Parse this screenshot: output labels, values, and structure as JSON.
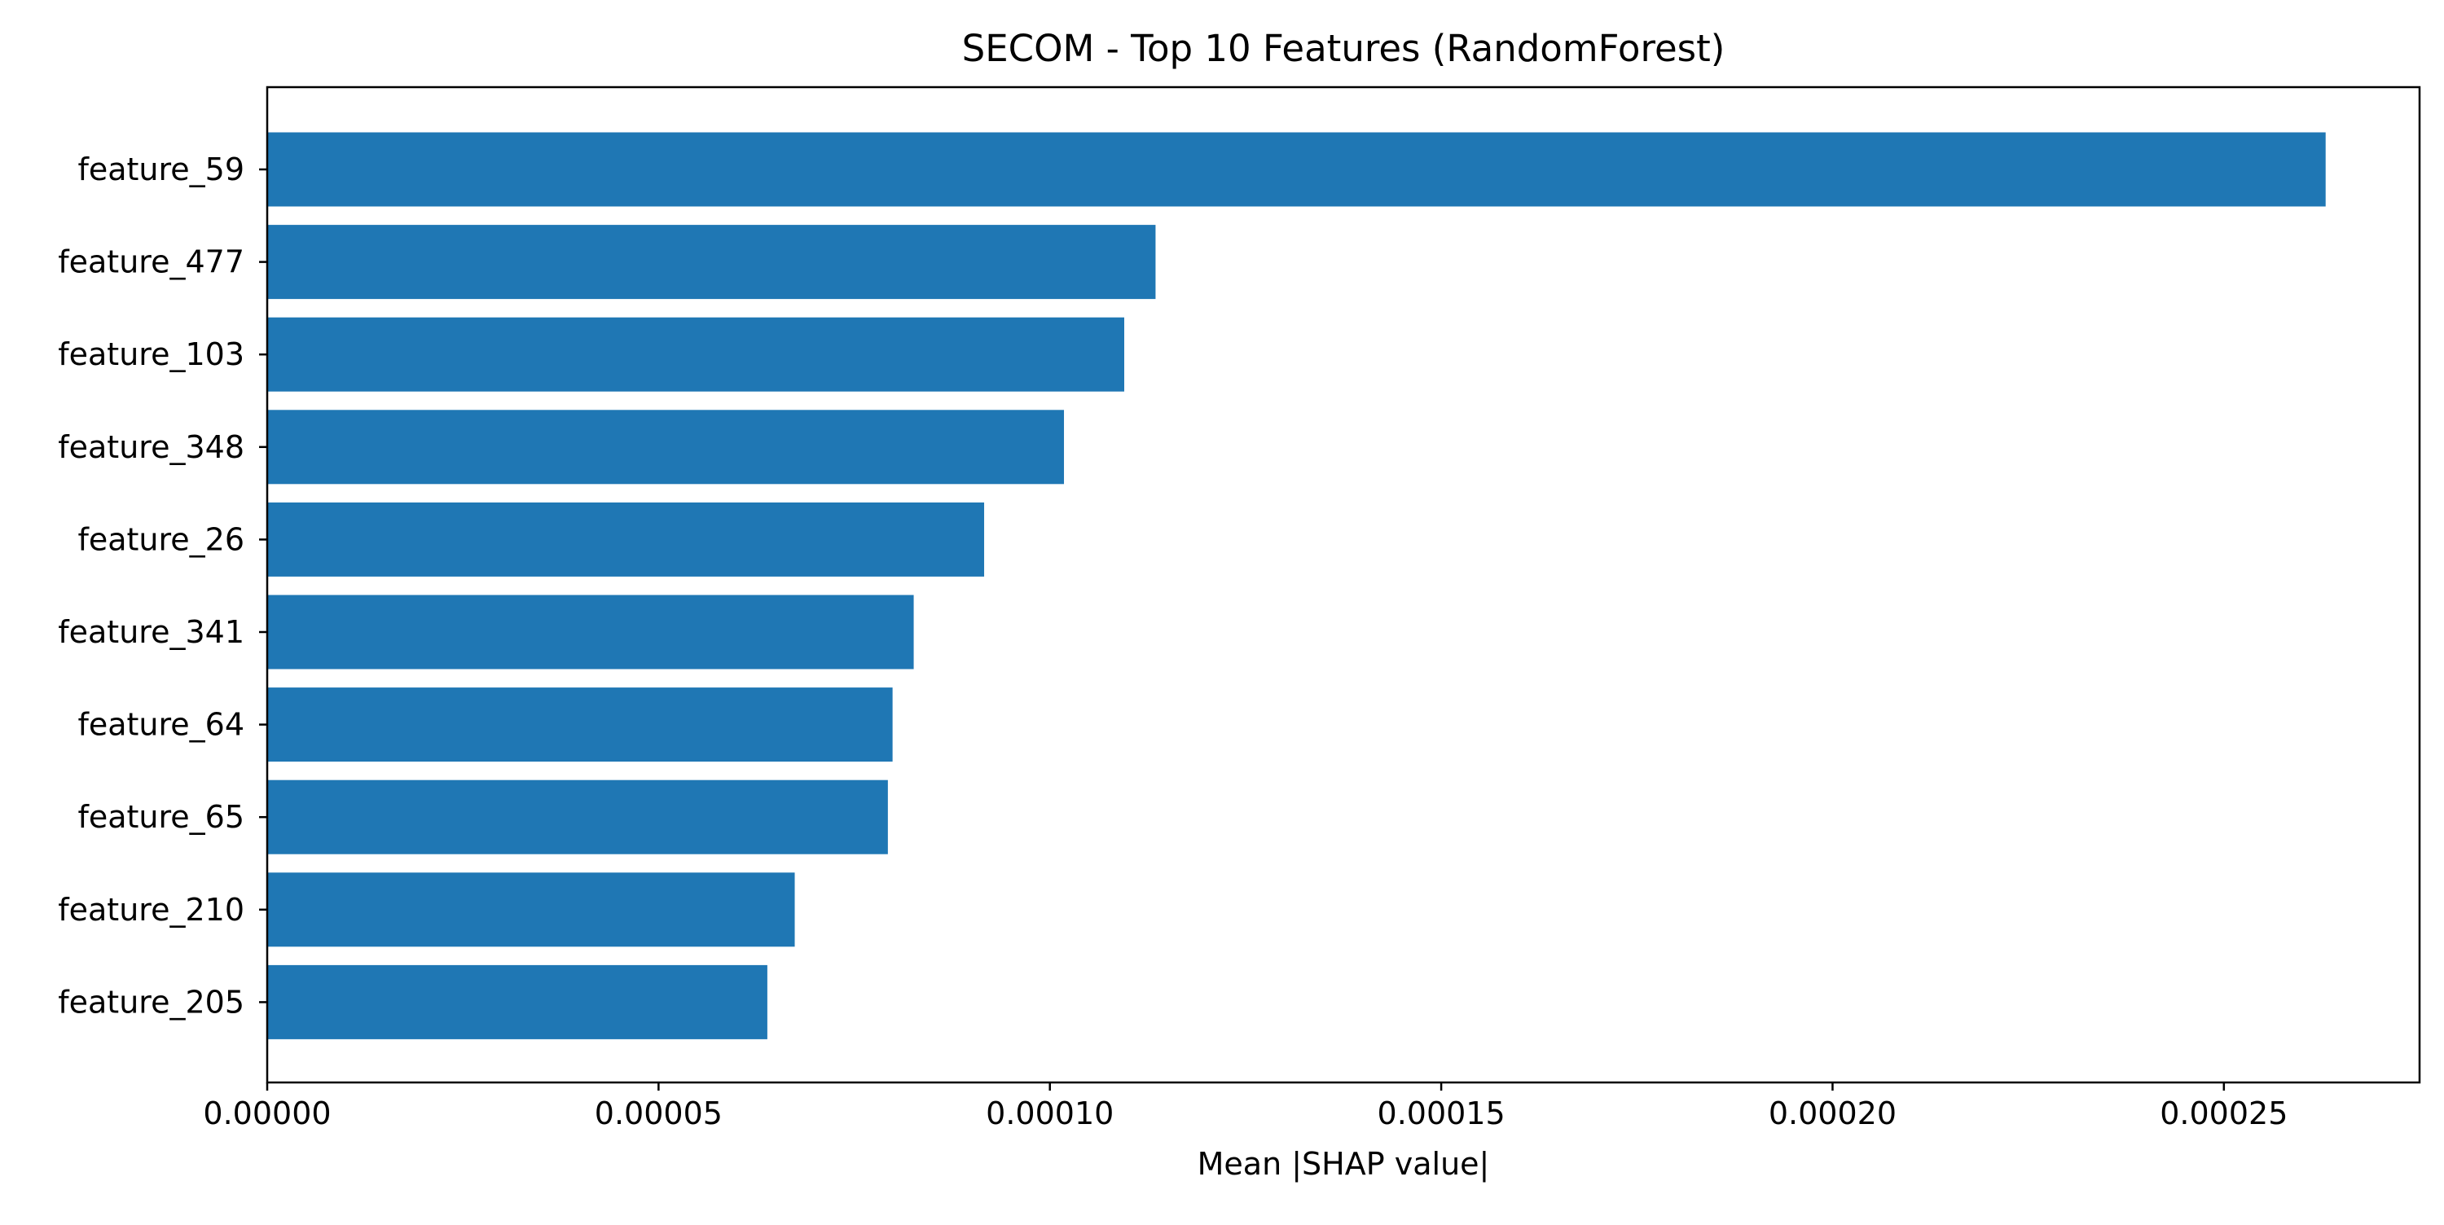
{
  "chart_data": {
    "type": "bar",
    "orientation": "horizontal",
    "title": "SECOM - Top 10 Features (RandomForest)",
    "xlabel": "Mean |SHAP value|",
    "ylabel": "",
    "xlim": [
      0,
      0.000275
    ],
    "x_ticks": [
      "0.00000",
      "0.00005",
      "0.00010",
      "0.00015",
      "0.00020",
      "0.00025"
    ],
    "x_tick_values": [
      0,
      5e-05,
      0.0001,
      0.00015,
      0.0002,
      0.00025
    ],
    "categories": [
      "feature_59",
      "feature_477",
      "feature_103",
      "feature_348",
      "feature_26",
      "feature_341",
      "feature_64",
      "feature_65",
      "feature_210",
      "feature_205"
    ],
    "values": [
      0.000263,
      0.0001135,
      0.0001095,
      0.0001018,
      9.16e-05,
      8.26e-05,
      7.99e-05,
      7.93e-05,
      6.74e-05,
      6.39e-05
    ],
    "bar_color": "#1f77b4",
    "grid": false,
    "legend": "none"
  }
}
